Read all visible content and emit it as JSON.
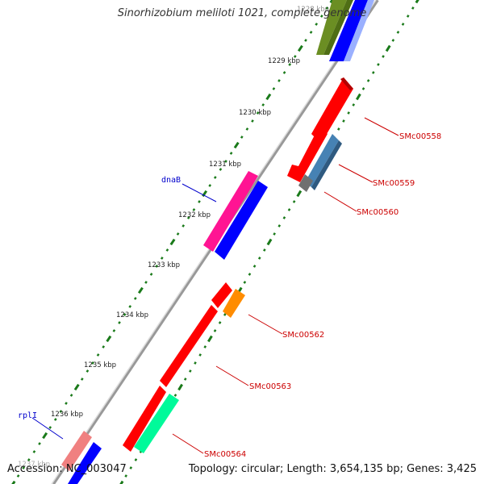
{
  "title": "Sinorhizobium meliloti 1021, complete genome",
  "footer": {
    "accession": "Accession: NC_003047",
    "summary": "Topology: circular; Length: 3,654,135 bp; Genes: 3,425"
  },
  "scale_labels": [
    "1228 kbp",
    "1229 kbp",
    "1230 kbp",
    "1231 kbp",
    "1232 kbp",
    "1233 kbp",
    "1234 kbp",
    "1235 kbp",
    "1236 kbp",
    "1237 kbp"
  ],
  "gene_labels": [
    {
      "text": "dnaB",
      "color": "#0000cc"
    },
    {
      "text": "rplI",
      "color": "#0000cc"
    },
    {
      "text": "SMc00558",
      "color": "#cc0000"
    },
    {
      "text": "SMc00559",
      "color": "#cc0000"
    },
    {
      "text": "SMc00560",
      "color": "#cc0000"
    },
    {
      "text": "SMc00562",
      "color": "#cc0000"
    },
    {
      "text": "SMc00563",
      "color": "#cc0000"
    },
    {
      "text": "SMc00564",
      "color": "#cc0000"
    }
  ],
  "colors": {
    "backbone": "#888888",
    "tick": "#1a7a1a",
    "red_gene": "#ff0000",
    "blue_gene": "#0000ff",
    "magenta_gene": "#ff1493",
    "olive_gene": "#6b8e23",
    "steel_gene": "#4682b4",
    "grey_gene": "#707070",
    "orange_gene": "#ff8c00",
    "green_gene": "#00fa9a",
    "pink_gene": "#f08080"
  }
}
